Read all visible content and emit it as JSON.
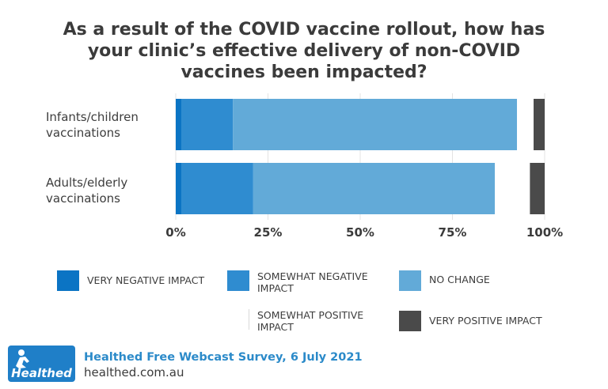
{
  "chart_data": {
    "type": "bar",
    "orientation": "horizontal",
    "stacked": true,
    "title": "As a result of the COVID vaccine rollout, how has your clinic’s effective delivery of non-COVID vaccines been impacted?",
    "categories": [
      "Infants/children vaccinations",
      "Adults/elderly vaccinations"
    ],
    "series": [
      {
        "name": "VERY NEGATIVE IMPACT",
        "color": "#0b74c4",
        "values": [
          1.5,
          1.5
        ]
      },
      {
        "name": "SOMEWHAT NEGATIVE IMPACT",
        "color": "#2f8cd0",
        "values": [
          14,
          19.5
        ]
      },
      {
        "name": "NO CHANGE",
        "color": "#62aad8",
        "values": [
          77,
          65.5
        ]
      },
      {
        "name": "SOMEWHAT POSITIVE IMPACT",
        "color": "#ffffff",
        "values": [
          4.5,
          9.5
        ]
      },
      {
        "name": "VERY POSITIVE IMPACT",
        "color": "#4a4a4a",
        "values": [
          3,
          4
        ]
      }
    ],
    "xlim": [
      0,
      100
    ],
    "xticks": [
      "0%",
      "25%",
      "50%",
      "75%",
      "100%"
    ],
    "grid": true,
    "legend_position": "bottom"
  },
  "title_lines": [
    "As a result of the COVID vaccine rollout, how has",
    "your clinic’s effective delivery of non-COVID",
    "vaccines been impacted?"
  ],
  "category_label_lines": [
    [
      "Infants/children",
      "vaccinations"
    ],
    [
      "Adults/elderly",
      "vaccinations"
    ]
  ],
  "legend_label_lines": [
    [
      "VERY NEGATIVE IMPACT"
    ],
    [
      "SOMEWHAT NEGATIVE",
      "IMPACT"
    ],
    [
      "NO CHANGE"
    ],
    [
      "SOMEWHAT POSITIVE",
      "IMPACT"
    ],
    [
      "VERY POSITIVE IMPACT"
    ]
  ],
  "footer": {
    "logo_text": "Healthed",
    "survey": "Healthed Free Webcast Survey, 6 July 2021",
    "url": "healthed.com.au"
  },
  "colors": {
    "title": "#3b3b3b",
    "footer_accent": "#2b8ac9",
    "logo_bg": "#1f7fc8"
  }
}
